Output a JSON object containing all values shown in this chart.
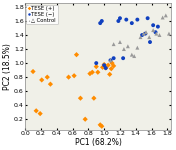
{
  "xlabel": "PC1 (68.2%)",
  "ylabel": "PC2 (18.5%)",
  "xlim": [
    0.0,
    1.85
  ],
  "ylim": [
    0.05,
    1.85
  ],
  "orange_x": [
    0.1,
    0.14,
    0.19,
    0.21,
    0.28,
    0.32,
    0.55,
    0.62,
    0.65,
    0.7,
    0.76,
    0.82,
    0.85,
    0.87,
    0.9,
    0.92,
    0.95,
    0.97,
    0.98,
    1.0,
    1.02,
    1.05,
    1.07,
    1.09,
    1.1,
    1.12
  ],
  "orange_y": [
    0.88,
    0.32,
    0.28,
    0.76,
    0.8,
    0.7,
    0.8,
    0.82,
    1.12,
    0.5,
    0.2,
    0.85,
    0.87,
    0.5,
    0.95,
    0.87,
    0.12,
    0.1,
    0.94,
    0.98,
    0.93,
    0.97,
    0.84,
    0.92,
    1.0,
    0.96
  ],
  "blue_x": [
    0.9,
    0.95,
    0.97,
    1.0,
    1.02,
    1.08,
    1.12,
    1.18,
    1.2,
    1.24,
    1.28,
    1.35,
    1.42,
    1.48,
    1.52,
    1.55,
    1.58,
    1.62,
    1.65,
    1.68
  ],
  "blue_y": [
    1.0,
    1.57,
    1.6,
    0.97,
    0.93,
    1.04,
    1.07,
    1.6,
    1.64,
    1.07,
    1.62,
    1.57,
    1.62,
    1.4,
    1.42,
    1.64,
    1.3,
    1.54,
    1.44,
    1.52
  ],
  "gray_x": [
    1.08,
    1.12,
    1.2,
    1.25,
    1.3,
    1.35,
    1.38,
    1.42,
    1.46,
    1.5,
    1.53,
    1.57,
    1.62,
    1.66,
    1.7,
    1.74,
    1.78,
    1.82
  ],
  "gray_y": [
    1.04,
    1.27,
    1.3,
    1.2,
    1.24,
    1.12,
    1.1,
    1.22,
    1.37,
    1.42,
    1.44,
    1.37,
    1.47,
    1.42,
    1.4,
    1.65,
    1.68,
    1.42
  ],
  "orange_color": "#FF8C00",
  "blue_color": "#1040BF",
  "gray_color": "#999999",
  "bg_color": "#f0f0e8",
  "fontsize": 5.5,
  "tick_fontsize": 4.5,
  "legend_labels": [
    "TESE (+)",
    "TESE (-)",
    "△ Control"
  ],
  "marker_size_orange": 7,
  "marker_size_blue": 8,
  "marker_size_gray": 8
}
